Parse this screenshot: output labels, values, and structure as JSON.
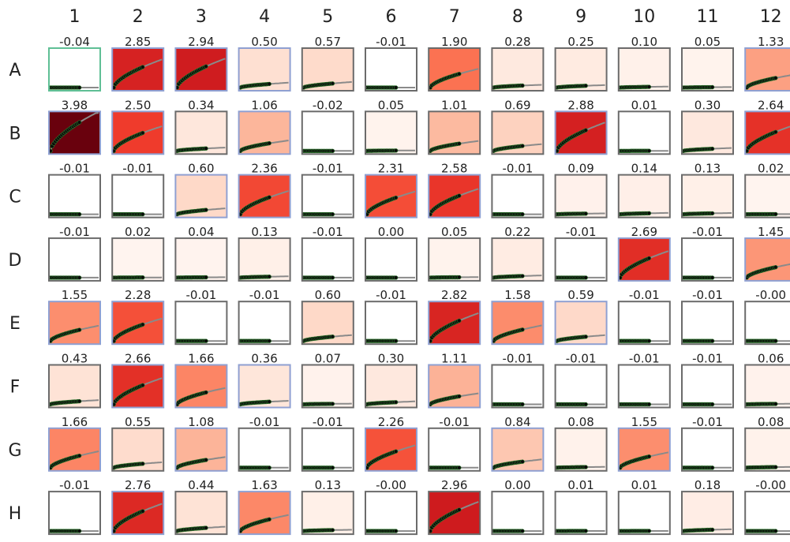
{
  "chart_data": {
    "type": "heatmap",
    "title": "",
    "columns": [
      "1",
      "2",
      "3",
      "4",
      "5",
      "6",
      "7",
      "8",
      "9",
      "10",
      "11",
      "12"
    ],
    "rows": [
      "A",
      "B",
      "C",
      "D",
      "E",
      "F",
      "G",
      "H"
    ],
    "value_labels": [
      [
        "-0.04",
        "2.85",
        "2.94",
        "0.50",
        "0.57",
        "-0.01",
        "1.90",
        "0.28",
        "0.25",
        "0.10",
        "0.05",
        "1.33"
      ],
      [
        "3.98",
        "2.50",
        "0.34",
        "1.06",
        "-0.02",
        "0.05",
        "1.01",
        "0.69",
        "2.88",
        "0.01",
        "0.30",
        "2.64"
      ],
      [
        "-0.01",
        "-0.01",
        "0.60",
        "2.36",
        "-0.01",
        "2.31",
        "2.58",
        "-0.01",
        "0.09",
        "0.14",
        "0.13",
        "0.02"
      ],
      [
        "-0.01",
        "0.02",
        "0.04",
        "0.13",
        "-0.01",
        "0.00",
        "0.05",
        "0.22",
        "-0.01",
        "2.69",
        "-0.01",
        "1.45"
      ],
      [
        "1.55",
        "2.28",
        "-0.01",
        "-0.01",
        "0.60",
        "-0.01",
        "2.82",
        "1.58",
        "0.59",
        "-0.01",
        "-0.01",
        "-0.00"
      ],
      [
        "0.43",
        "2.66",
        "1.66",
        "0.36",
        "0.07",
        "0.30",
        "1.11",
        "-0.01",
        "-0.01",
        "-0.01",
        "-0.01",
        "0.06"
      ],
      [
        "1.66",
        "0.55",
        "1.08",
        "-0.01",
        "-0.01",
        "2.26",
        "-0.01",
        "0.84",
        "0.08",
        "1.55",
        "-0.01",
        "0.08"
      ],
      [
        "-0.01",
        "2.76",
        "0.44",
        "1.63",
        "0.13",
        "-0.00",
        "2.96",
        "0.00",
        "0.01",
        "0.01",
        "0.18",
        "-0.00"
      ]
    ],
    "border_type": [
      [
        "teal",
        "blue",
        "blue",
        "blue",
        "gray",
        "gray",
        "gray",
        "gray",
        "gray",
        "gray",
        "gray",
        "blue"
      ],
      [
        "blue",
        "blue",
        "gray",
        "blue",
        "gray",
        "gray",
        "gray",
        "gray",
        "blue",
        "gray",
        "gray",
        "blue"
      ],
      [
        "gray",
        "gray",
        "blue",
        "blue",
        "gray",
        "blue",
        "blue",
        "gray",
        "gray",
        "gray",
        "gray",
        "gray"
      ],
      [
        "gray",
        "gray",
        "gray",
        "gray",
        "gray",
        "gray",
        "gray",
        "gray",
        "gray",
        "blue",
        "gray",
        "blue"
      ],
      [
        "blue",
        "blue",
        "gray",
        "gray",
        "gray",
        "gray",
        "blue",
        "blue",
        "blue",
        "gray",
        "gray",
        "gray"
      ],
      [
        "gray",
        "blue",
        "blue",
        "blue",
        "gray",
        "gray",
        "blue",
        "gray",
        "gray",
        "gray",
        "gray",
        "gray"
      ],
      [
        "blue",
        "gray",
        "blue",
        "gray",
        "gray",
        "blue",
        "gray",
        "blue",
        "gray",
        "blue",
        "gray",
        "gray"
      ],
      [
        "gray",
        "blue",
        "gray",
        "blue",
        "gray",
        "gray",
        "gray",
        "gray",
        "gray",
        "gray",
        "gray",
        "gray"
      ]
    ],
    "color_scale": "Reds",
    "color_range": [
      0,
      4
    ],
    "colors": {
      "teal": "#5fbf95",
      "blue": "#8fa0d2",
      "gray": "#6b6b6b",
      "curve": "#8a8a8a",
      "points": "#0a0a0a",
      "point_edge": "#2d7a2d"
    }
  }
}
